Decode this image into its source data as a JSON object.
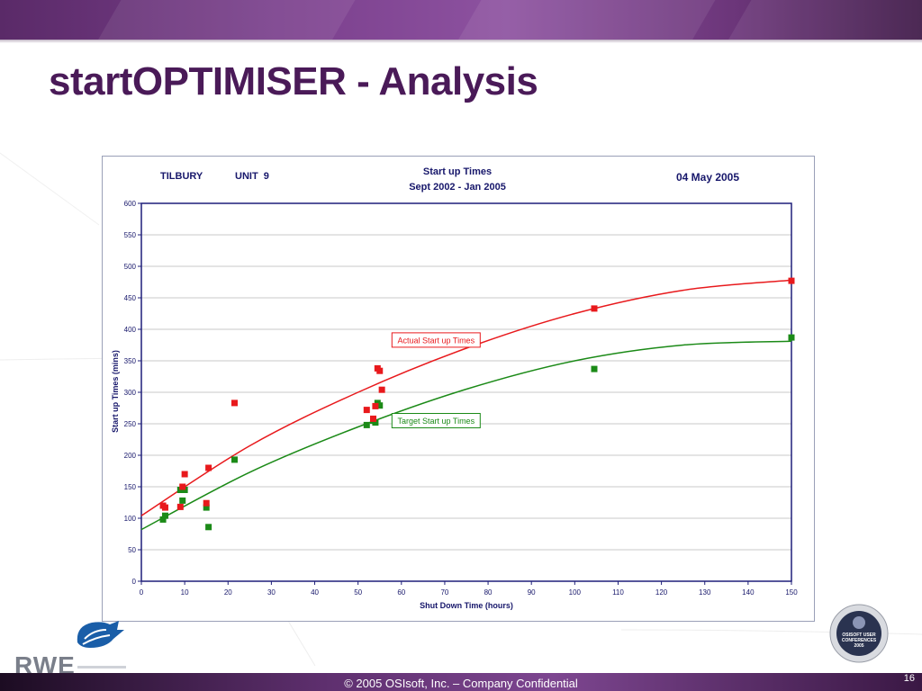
{
  "slide": {
    "title": "startOPTIMISER - Analysis",
    "footer": "© 2005 OSIsoft, Inc. – Company Confidential",
    "page_number": "16",
    "logo_text": "RWE",
    "badge_lines": [
      "OSISOFT USER",
      "CONFERENCES",
      "2005"
    ]
  },
  "colors": {
    "actual": "#e8191c",
    "target": "#1b8a17",
    "title_purple": "#4a1a58",
    "axis_text": "#17176b"
  },
  "chart_data": {
    "type": "scatter",
    "header": {
      "site": "TILBURY",
      "unit": "UNIT  9",
      "title": "Start up Times",
      "subtitle": "Sept 2002 - Jan 2005",
      "date": "04 May 2005"
    },
    "xlabel": "Shut Down Time (hours)",
    "ylabel": "Start up Times (mins)",
    "xlim": [
      0,
      150
    ],
    "ylim": [
      0,
      600
    ],
    "x_ticks": [
      0,
      10,
      20,
      30,
      40,
      50,
      60,
      70,
      80,
      90,
      100,
      110,
      120,
      130,
      140,
      150
    ],
    "y_ticks": [
      0,
      50,
      100,
      150,
      200,
      250,
      300,
      350,
      400,
      450,
      500,
      550,
      600
    ],
    "grid": "horizontal",
    "series": [
      {
        "name": "Actual Start up Times",
        "color": "#e8191c",
        "points": [
          [
            5,
            120
          ],
          [
            5.5,
            117
          ],
          [
            9,
            118
          ],
          [
            9.5,
            150
          ],
          [
            10,
            170
          ],
          [
            15,
            124
          ],
          [
            15.5,
            180
          ],
          [
            21.5,
            283
          ],
          [
            52,
            272
          ],
          [
            53.5,
            258
          ],
          [
            54,
            278
          ],
          [
            54.5,
            338
          ],
          [
            55,
            334
          ],
          [
            55.5,
            304
          ],
          [
            104.5,
            433
          ],
          [
            150,
            477
          ]
        ],
        "trend": [
          [
            0,
            104
          ],
          [
            25,
            215
          ],
          [
            50,
            300
          ],
          [
            75,
            370
          ],
          [
            100,
            425
          ],
          [
            125,
            462
          ],
          [
            150,
            478
          ]
        ]
      },
      {
        "name": "Target Start up Times",
        "color": "#1b8a17",
        "points": [
          [
            5,
            98
          ],
          [
            5.5,
            104
          ],
          [
            9,
            145
          ],
          [
            9.5,
            128
          ],
          [
            10,
            145
          ],
          [
            15,
            117
          ],
          [
            15.5,
            86
          ],
          [
            21.5,
            193
          ],
          [
            52,
            248
          ],
          [
            53.5,
            255
          ],
          [
            54,
            252
          ],
          [
            54.5,
            283
          ],
          [
            55,
            279
          ],
          [
            104.5,
            337
          ],
          [
            150,
            387
          ]
        ],
        "trend": [
          [
            0,
            82
          ],
          [
            25,
            173
          ],
          [
            50,
            245
          ],
          [
            75,
            305
          ],
          [
            100,
            350
          ],
          [
            125,
            375
          ],
          [
            150,
            381
          ]
        ]
      }
    ],
    "annotations": [
      {
        "text": "Actual Start up Times",
        "series": 0,
        "x": 68,
        "y": 383
      },
      {
        "text": "Target Start up Times",
        "series": 1,
        "x": 68,
        "y": 255
      }
    ]
  }
}
